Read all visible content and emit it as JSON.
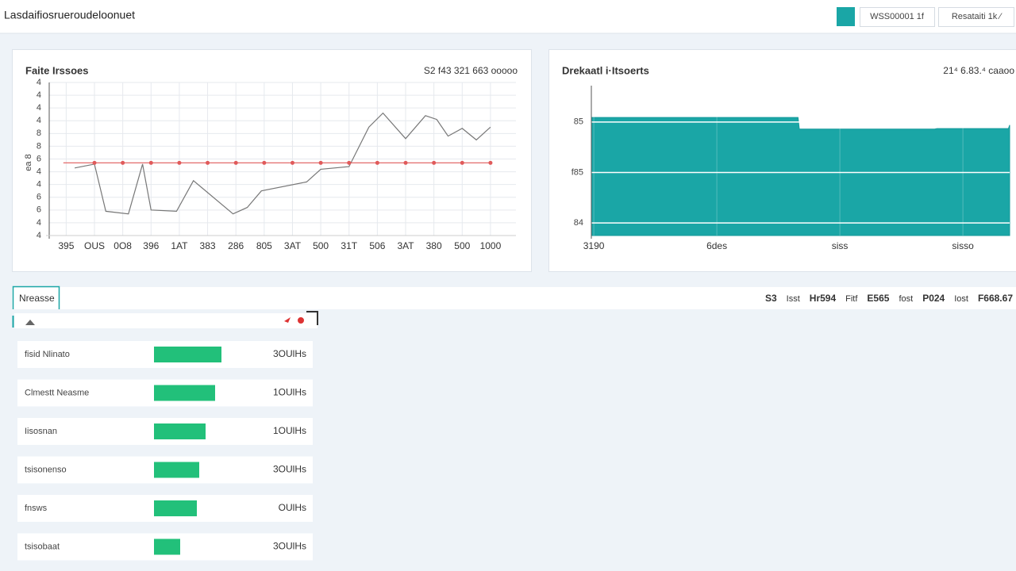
{
  "header": {
    "title": "Lasdaifiosrueroudeloonuet",
    "buttons": [
      "WSS00001 1f",
      "Resataiti 1k ⁄"
    ]
  },
  "chart_data": [
    {
      "type": "line",
      "title": "Faite Irssoes",
      "annotation": "S2 f43 321 663 ooooo",
      "y_label": "ea 8",
      "xlim": [
        -0.6,
        15.9
      ],
      "xticks": [
        {
          "value": 0,
          "label": "395"
        },
        {
          "value": 1,
          "label": "OUS"
        },
        {
          "value": 2,
          "label": "0O8"
        },
        {
          "value": 3,
          "label": "396"
        },
        {
          "value": 4,
          "label": "1AT"
        },
        {
          "value": 5,
          "label": "383"
        },
        {
          "value": 6,
          "label": "286"
        },
        {
          "value": 7,
          "label": "805"
        },
        {
          "value": 8,
          "label": "3AT"
        },
        {
          "value": 9,
          "label": "500"
        },
        {
          "value": 10,
          "label": "31T"
        },
        {
          "value": 11,
          "label": "506"
        },
        {
          "value": 12,
          "label": "3AT"
        },
        {
          "value": 13,
          "label": "380"
        },
        {
          "value": 14,
          "label": "500"
        },
        {
          "value": 15,
          "label": "1000"
        }
      ],
      "ylim": [
        0,
        12
      ],
      "yticks": [
        {
          "value": 0,
          "label": "4"
        },
        {
          "value": 1,
          "label": "4"
        },
        {
          "value": 2,
          "label": "6"
        },
        {
          "value": 3,
          "label": "6"
        },
        {
          "value": 4,
          "label": "4"
        },
        {
          "value": 5,
          "label": "4"
        },
        {
          "value": 6,
          "label": "6"
        },
        {
          "value": 7,
          "label": "8"
        },
        {
          "value": 8,
          "label": "8"
        },
        {
          "value": 9,
          "label": "4"
        },
        {
          "value": 10,
          "label": "4"
        },
        {
          "value": 11,
          "label": "4"
        },
        {
          "value": 12,
          "label": "4"
        }
      ],
      "grid": true,
      "series": [
        {
          "color": "#777777",
          "markers": false,
          "x": [
            0.3,
            1.0,
            1.4,
            2.2,
            2.7,
            3.0,
            3.9,
            4.5,
            5.9,
            6.4,
            6.9,
            8.5,
            9.0,
            10.0,
            10.7,
            11.2,
            12.0,
            12.7,
            13.1,
            13.5,
            14.0,
            14.5,
            15.0
          ],
          "values": [
            5.3,
            5.6,
            1.9,
            1.7,
            5.6,
            2.0,
            1.9,
            4.3,
            1.7,
            2.2,
            3.5,
            4.2,
            5.2,
            5.4,
            8.5,
            9.6,
            7.6,
            9.4,
            9.1,
            7.8,
            8.4,
            7.5,
            8.5
          ]
        },
        {
          "color": "#e05a5a",
          "markers": true,
          "x": [
            -0.1,
            1,
            2,
            3,
            4,
            5,
            6,
            7,
            8,
            9,
            10,
            11,
            12,
            13,
            14,
            15
          ],
          "values": [
            5.7,
            5.7,
            5.7,
            5.7,
            5.7,
            5.7,
            5.7,
            5.7,
            5.7,
            5.7,
            5.7,
            5.7,
            5.7,
            5.7,
            5.7,
            5.7
          ]
        }
      ]
    },
    {
      "type": "area",
      "title": "Drekaatl i·Itsoerts",
      "annotation": "21⁴ 6.83.⁴ caaoo",
      "xlim": [
        -0.02,
        3.38
      ],
      "xticks": [
        {
          "value": 0,
          "label": "3190"
        },
        {
          "value": 1,
          "label": "6des"
        },
        {
          "value": 2,
          "label": "siss"
        },
        {
          "value": 3,
          "label": "sisso"
        }
      ],
      "ylim": [
        0.75,
        3.72
      ],
      "yticks": [
        {
          "value": 1,
          "label": "84"
        },
        {
          "value": 2,
          "label": "f85"
        },
        {
          "value": 3,
          "label": "85"
        }
      ],
      "grid": true,
      "series": [
        {
          "color": "#1aa6a6",
          "x": [
            -0.02,
            1.66,
            1.67,
            2.77,
            2.79,
            3.37,
            3.38
          ],
          "values": [
            3.09,
            3.09,
            2.86,
            2.86,
            2.87,
            2.87,
            2.94
          ]
        }
      ]
    }
  ],
  "tabs": {
    "active": "Nreasse",
    "items": [
      "S3",
      "Isst",
      "Hr594",
      "Fitf",
      "E565",
      "fost",
      "P024",
      "Iost",
      "F668.67"
    ]
  },
  "list": {
    "bar_lim": [
      0,
      100
    ],
    "bar_color": "#22c07a",
    "rows": [
      {
        "label": "fisid Nlinato",
        "value_text": "3OUlHs",
        "bar": 85
      },
      {
        "label": "Clmestt Neasme",
        "value_text": "1OUlHs",
        "bar": 77
      },
      {
        "label": "Iisosnan",
        "value_text": "1OUlHs",
        "bar": 65
      },
      {
        "label": "tsisonenso",
        "value_text": "3OUlHs",
        "bar": 57
      },
      {
        "label": "fnsws",
        "value_text": "OUlHs",
        "bar": 54
      },
      {
        "label": "tsisobaat",
        "value_text": "3OUlHs",
        "bar": 33
      }
    ]
  }
}
